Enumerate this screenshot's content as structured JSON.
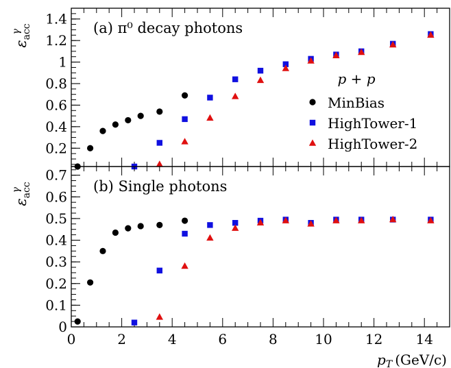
{
  "chart_data": {
    "type": "scatter",
    "xlabel": "p_T (GeV/c)",
    "xlim": [
      0,
      15
    ],
    "x_ticks": [
      "0",
      "2",
      "4",
      "6",
      "8",
      "10",
      "12",
      "14"
    ],
    "legend": {
      "title": "p + p",
      "placement": "right of panel (a)",
      "entries": [
        {
          "name": "MinBias",
          "marker": "circle",
          "color": "#000000"
        },
        {
          "name": "HighTower-1",
          "marker": "square",
          "color": "#1010e0"
        },
        {
          "name": "HighTower-2",
          "marker": "triangle",
          "color": "#e01010"
        }
      ]
    },
    "panels": [
      {
        "id": "a",
        "label": "(a) π⁰ decay photons",
        "ylabel": "ε_acc^γ",
        "ylim": [
          0.03,
          1.5
        ],
        "y_ticks": [
          "0.2",
          "0.4",
          "0.6",
          "0.8",
          "1",
          "1.2",
          "1.4"
        ],
        "series": [
          {
            "name": "MinBias",
            "x": [
              0.25,
              0.75,
              1.25,
              1.75,
              2.25,
              2.75,
              3.5,
              4.5
            ],
            "y": [
              0.03,
              0.2,
              0.36,
              0.42,
              0.46,
              0.5,
              0.54,
              0.69
            ]
          },
          {
            "name": "HighTower-1",
            "x": [
              2.5,
              3.5,
              4.5,
              5.5,
              6.5,
              7.5,
              8.5,
              9.5,
              10.5,
              11.5,
              12.75,
              14.25
            ],
            "y": [
              0.03,
              0.25,
              0.47,
              0.67,
              0.84,
              0.92,
              0.98,
              1.03,
              1.07,
              1.1,
              1.17,
              1.26
            ]
          },
          {
            "name": "HighTower-2",
            "x": [
              3.5,
              4.5,
              5.5,
              6.5,
              7.5,
              8.5,
              9.5,
              10.5,
              11.5,
              12.75,
              14.25
            ],
            "y": [
              0.05,
              0.26,
              0.48,
              0.68,
              0.83,
              0.94,
              1.01,
              1.06,
              1.09,
              1.16,
              1.25
            ]
          }
        ]
      },
      {
        "id": "b",
        "label": "(b)  Single photons",
        "ylabel": "ε_acc^γ",
        "ylim": [
          0,
          0.74
        ],
        "y_ticks": [
          "0",
          "0.1",
          "0.2",
          "0.3",
          "0.4",
          "0.5",
          "0.6",
          "0.7"
        ],
        "series": [
          {
            "name": "MinBias",
            "x": [
              0.25,
              0.75,
              1.25,
              1.75,
              2.25,
              2.75,
              3.5,
              4.5
            ],
            "y": [
              0.025,
              0.205,
              0.35,
              0.435,
              0.455,
              0.465,
              0.47,
              0.49
            ]
          },
          {
            "name": "HighTower-1",
            "x": [
              2.5,
              3.5,
              4.5,
              5.5,
              6.5,
              7.5,
              8.5,
              9.5,
              10.5,
              11.5,
              12.75,
              14.25
            ],
            "y": [
              0.02,
              0.26,
              0.43,
              0.47,
              0.48,
              0.49,
              0.495,
              0.48,
              0.495,
              0.495,
              0.495,
              0.495
            ]
          },
          {
            "name": "HighTower-2",
            "x": [
              3.5,
              4.5,
              5.5,
              6.5,
              7.5,
              8.5,
              9.5,
              10.5,
              11.5,
              12.75,
              14.25
            ],
            "y": [
              0.045,
              0.28,
              0.41,
              0.455,
              0.48,
              0.49,
              0.475,
              0.49,
              0.49,
              0.495,
              0.49
            ]
          }
        ]
      }
    ]
  }
}
